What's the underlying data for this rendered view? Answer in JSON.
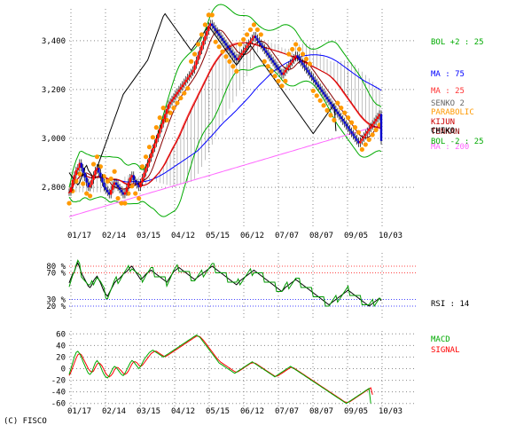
{
  "copyright": "(C) FISCO",
  "colors": {
    "candle_up": "#ff0000",
    "candle_down": "#0000cc",
    "wick": "#000000",
    "bol_upper": "#00aa00",
    "bol_lower": "#00aa00",
    "ma75": "#0000ff",
    "ma25": "#ff3333",
    "parabolic": "#ff9900",
    "tenkan": "#880000",
    "kijun": "#cc0000",
    "senko_span": "#999999",
    "chiko": "#000000",
    "ma200": "#ff66ff",
    "rsi": "#000000",
    "rsi2": "#009900",
    "macd": "#00aa00",
    "signal": "#ff0000",
    "grid": "#888888"
  },
  "chart_data": [
    {
      "type": "line",
      "panel": "price",
      "x_tick_labels": [
        "01/17",
        "02/14",
        "03/15",
        "04/12",
        "05/15",
        "06/12",
        "07/07",
        "08/07",
        "09/05",
        "10/03"
      ],
      "y_tick_labels": [
        "3,400",
        "3,200",
        "3,000",
        "2,800"
      ],
      "ylim": [
        2630,
        3530
      ],
      "grid": true,
      "legend_position": "right",
      "legend": [
        {
          "label": "BOL +2 : 25",
          "color": "#00aa00"
        },
        {
          "label": "MA : 75",
          "color": "#0000ff"
        },
        {
          "label": "MA : 25",
          "color": "#ff3333"
        },
        {
          "label": "SENKO 2",
          "color": "#666666"
        },
        {
          "label": "PARABOLIC",
          "color": "#ff9900"
        },
        {
          "label": "KIJUN",
          "color": "#cc0000"
        },
        {
          "label": "TENKAN",
          "color": "#880000"
        },
        {
          "label": "CHIKO",
          "color": "#000000"
        },
        {
          "label": "MA : 200",
          "color": "#ff66ff"
        },
        {
          "label": "BOL -2 : 25",
          "color": "#00aa00"
        }
      ],
      "n": 180,
      "series": [
        {
          "name": "CLOSE",
          "values": [
            2780,
            2800,
            2830,
            2850,
            2870,
            2880,
            2900,
            2880,
            2860,
            2840,
            2820,
            2800,
            2810,
            2830,
            2850,
            2870,
            2880,
            2860,
            2840,
            2820,
            2800,
            2790,
            2780,
            2770,
            2790,
            2810,
            2820,
            2810,
            2800,
            2790,
            2780,
            2770,
            2780,
            2800,
            2820,
            2840,
            2850,
            2830,
            2820,
            2810,
            2800,
            2820,
            2840,
            2860,
            2880,
            2900,
            2920,
            2940,
            2960,
            2980,
            3000,
            3020,
            3040,
            3060,
            3080,
            3100,
            3120,
            3140,
            3150,
            3160,
            3170,
            3180,
            3190,
            3200,
            3210,
            3220,
            3230,
            3240,
            3250,
            3260,
            3270,
            3280,
            3300,
            3320,
            3340,
            3360,
            3380,
            3400,
            3420,
            3440,
            3460,
            3470,
            3460,
            3450,
            3440,
            3430,
            3420,
            3410,
            3400,
            3390,
            3380,
            3370,
            3360,
            3350,
            3340,
            3330,
            3320,
            3330,
            3340,
            3350,
            3360,
            3370,
            3380,
            3390,
            3400,
            3410,
            3420,
            3410,
            3400,
            3390,
            3380,
            3370,
            3360,
            3350,
            3340,
            3330,
            3320,
            3310,
            3300,
            3290,
            3280,
            3270,
            3260,
            3270,
            3280,
            3290,
            3300,
            3310,
            3320,
            3330,
            3340,
            3330,
            3320,
            3310,
            3300,
            3290,
            3280,
            3270,
            3260,
            3250,
            3240,
            3230,
            3220,
            3210,
            3200,
            3190,
            3180,
            3170,
            3160,
            3150,
            3140,
            3130,
            3120,
            3110,
            3100,
            3090,
            3080,
            3070,
            3060,
            3050,
            3040,
            3030,
            3020,
            3010,
            3000,
            2990,
            2980,
            2990,
            3000,
            3010,
            3020,
            3030,
            3040,
            3050,
            3060,
            3070,
            3080,
            3090,
            3100,
            2990
          ]
        }
      ]
    },
    {
      "type": "line",
      "panel": "rsi",
      "y_tick_labels": [
        "80 %",
        "70 %",
        "30 %",
        "20 %"
      ],
      "ylim": [
        0,
        100
      ],
      "legend": [
        {
          "label": "RSI : 14",
          "color": "#000000"
        }
      ],
      "series": [
        {
          "name": "RSI",
          "values": [
            55,
            62,
            68,
            72,
            80,
            85,
            78,
            70,
            65,
            60,
            55,
            50,
            48,
            52,
            58,
            62,
            65,
            60,
            55,
            48,
            42,
            38,
            35,
            40,
            45,
            50,
            55,
            58,
            60,
            62,
            65,
            68,
            70,
            72,
            75,
            78,
            80,
            76,
            72,
            68,
            64,
            60,
            62,
            65,
            68,
            70,
            72,
            74,
            72,
            70,
            68,
            66,
            64,
            62,
            60,
            58,
            56,
            60,
            64,
            68,
            72,
            74,
            76,
            78,
            76,
            74,
            72,
            70,
            68,
            66,
            64,
            62,
            60,
            62,
            64,
            66,
            68,
            70,
            72,
            74,
            76,
            78,
            80,
            78,
            76,
            74,
            72,
            70,
            68,
            66,
            64,
            62,
            60,
            58,
            56,
            54,
            52,
            55,
            58,
            60,
            62,
            64,
            66,
            68,
            70,
            72,
            74,
            72,
            70,
            68,
            66,
            64,
            62,
            60,
            58,
            56,
            54,
            52,
            50,
            48,
            46,
            44,
            42,
            45,
            48,
            50,
            52,
            54,
            56,
            58,
            60,
            58,
            56,
            54,
            52,
            50,
            48,
            46,
            44,
            42,
            40,
            38,
            36,
            34,
            32,
            30,
            28,
            26,
            24,
            22,
            24,
            26,
            28,
            30,
            32,
            34,
            36,
            38,
            40,
            42,
            44,
            42,
            40,
            38,
            36,
            34,
            32,
            30,
            28,
            26,
            24,
            22,
            20,
            22,
            24,
            26,
            28,
            30,
            32,
            28
          ]
        }
      ]
    },
    {
      "type": "line",
      "panel": "macd",
      "y_tick_labels": [
        "60",
        "40",
        "20",
        "0",
        "-20",
        "-40",
        "-60"
      ],
      "ylim": [
        -65,
        65
      ],
      "legend": [
        {
          "label": "MACD",
          "color": "#00aa00"
        },
        {
          "label": "SIGNAL",
          "color": "#ff0000"
        }
      ],
      "series": [
        {
          "name": "MACD",
          "values": [
            -10,
            0,
            10,
            20,
            28,
            30,
            26,
            20,
            12,
            5,
            -2,
            -8,
            -10,
            -6,
            2,
            10,
            14,
            10,
            4,
            -4,
            -10,
            -14,
            -16,
            -12,
            -6,
            0,
            4,
            2,
            -2,
            -6,
            -10,
            -12,
            -8,
            -2,
            4,
            10,
            14,
            12,
            8,
            4,
            0,
            4,
            10,
            16,
            20,
            24,
            28,
            30,
            32,
            30,
            28,
            26,
            24,
            22,
            20,
            22,
            24,
            26,
            28,
            30,
            32,
            34,
            36,
            38,
            40,
            42,
            44,
            46,
            48,
            50,
            52,
            54,
            56,
            58,
            56,
            54,
            50,
            46,
            42,
            38,
            34,
            30,
            26,
            22,
            18,
            14,
            10,
            8,
            6,
            4,
            2,
            0,
            -2,
            -4,
            -6,
            -8,
            -6,
            -4,
            -2,
            0,
            2,
            4,
            6,
            8,
            10,
            12,
            10,
            8,
            6,
            4,
            2,
            0,
            -2,
            -4,
            -6,
            -8,
            -10,
            -12,
            -14,
            -12,
            -10,
            -8,
            -6,
            -4,
            -2,
            0,
            2,
            4,
            2,
            0,
            -2,
            -4,
            -6,
            -8,
            -10,
            -12,
            -14,
            -16,
            -18,
            -20,
            -22,
            -24,
            -26,
            -28,
            -30,
            -32,
            -34,
            -36,
            -38,
            -40,
            -42,
            -44,
            -46,
            -48,
            -50,
            -52,
            -54,
            -56,
            -58,
            -60,
            -58,
            -56,
            -54,
            -52,
            -50,
            -48,
            -46,
            -44,
            -42,
            -40,
            -38,
            -36,
            -34,
            -60
          ]
        },
        {
          "name": "SIGNAL",
          "values": [
            -12,
            -6,
            2,
            10,
            18,
            24,
            26,
            24,
            18,
            12,
            6,
            0,
            -4,
            -6,
            -4,
            2,
            8,
            10,
            8,
            4,
            -2,
            -8,
            -12,
            -14,
            -12,
            -8,
            -2,
            2,
            2,
            -1,
            -4,
            -8,
            -10,
            -8,
            -4,
            2,
            8,
            12,
            12,
            10,
            6,
            4,
            6,
            10,
            14,
            18,
            22,
            26,
            28,
            30,
            30,
            28,
            26,
            24,
            22,
            21,
            22,
            24,
            26,
            28,
            30,
            32,
            34,
            36,
            38,
            40,
            42,
            44,
            46,
            48,
            50,
            52,
            54,
            56,
            56,
            55,
            52,
            49,
            45,
            41,
            37,
            33,
            29,
            25,
            21,
            17,
            14,
            11,
            9,
            7,
            5,
            3,
            1,
            -1,
            -3,
            -5,
            -6,
            -5,
            -3,
            -1,
            1,
            3,
            5,
            7,
            9,
            10,
            10,
            9,
            7,
            5,
            3,
            1,
            -1,
            -3,
            -5,
            -7,
            -9,
            -11,
            -13,
            -13,
            -12,
            -10,
            -8,
            -6,
            -4,
            -2,
            0,
            2,
            2,
            1,
            -1,
            -3,
            -5,
            -7,
            -9,
            -11,
            -13,
            -15,
            -17,
            -19,
            -21,
            -23,
            -25,
            -27,
            -29,
            -31,
            -33,
            -35,
            -37,
            -39,
            -41,
            -43,
            -45,
            -47,
            -49,
            -51,
            -53,
            -55,
            -57,
            -58,
            -58,
            -57,
            -55,
            -53,
            -51,
            -49,
            -47,
            -45,
            -43,
            -41,
            -39,
            -37,
            -35,
            -33,
            -45
          ]
        }
      ]
    }
  ]
}
